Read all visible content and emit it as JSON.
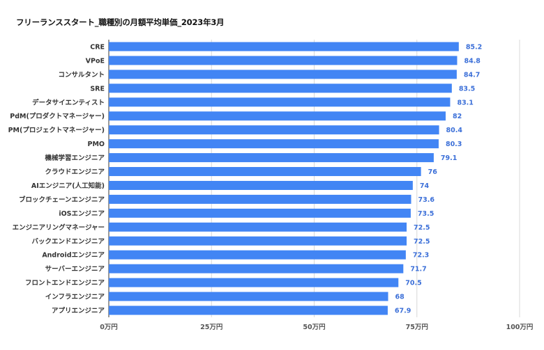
{
  "chart_data": {
    "type": "bar",
    "orientation": "horizontal",
    "title": "フリーランススタート_職種別の月額平均単価_2023年3月",
    "xlabel": "",
    "ylabel": "",
    "xlim": [
      0,
      100
    ],
    "grid": true,
    "legend": "none",
    "bar_color": "#4285f4",
    "value_label_color": "#3b6fd8",
    "ticks": [
      "0万円",
      "25万円",
      "50万円",
      "75万円",
      "100万円"
    ],
    "tick_values": [
      0,
      25,
      50,
      75,
      100
    ],
    "categories": [
      "CRE",
      "VPoE",
      "コンサルタント",
      "SRE",
      "データサイエンティスト",
      "PdM(プロダクトマネージャー)",
      "PM(プロジェクトマネージャー)",
      "PMO",
      "機械学習エンジニア",
      "クラウドエンジニア",
      "AIエンジニア(人工知能)",
      "ブロックチェーンエンジニア",
      "iOSエンジニア",
      "エンジニアリングマネージャー",
      "バックエンドエンジニア",
      "Androidエンジニア",
      "サーバーエンジニア",
      "フロントエンドエンジニア",
      "インフラエンジニア",
      "アプリエンジニア"
    ],
    "values": [
      85.2,
      84.8,
      84.7,
      83.5,
      83.1,
      82,
      80.4,
      80.3,
      79.1,
      76,
      74,
      73.6,
      73.5,
      72.5,
      72.5,
      72.3,
      71.7,
      70.5,
      68,
      67.9
    ],
    "value_labels": [
      "85.2",
      "84.8",
      "84.7",
      "83.5",
      "83.1",
      "82",
      "80.4",
      "80.3",
      "79.1",
      "76",
      "74",
      "73.6",
      "73.5",
      "72.5",
      "72.5",
      "72.3",
      "71.7",
      "70.5",
      "68",
      "67.9"
    ]
  }
}
